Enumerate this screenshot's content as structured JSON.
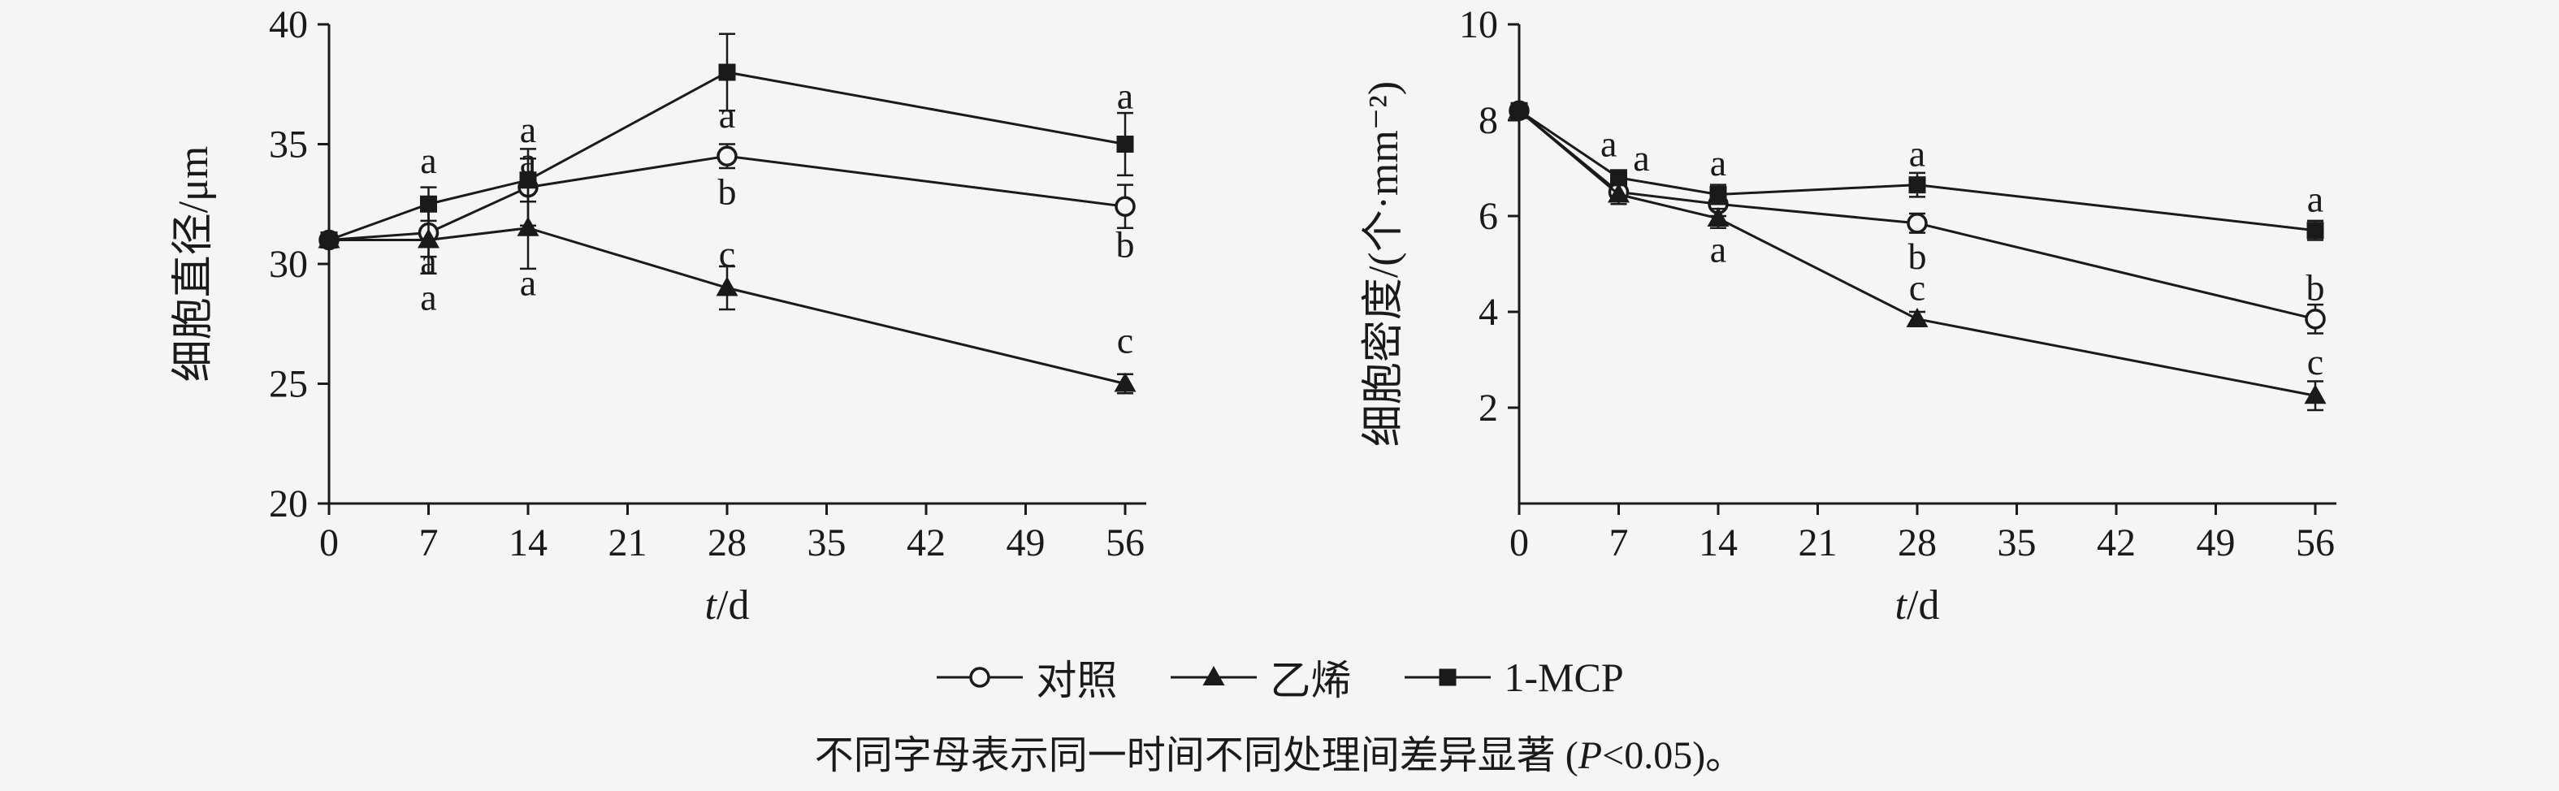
{
  "figure": {
    "background": "#f5f5f5",
    "ink": "#1a1a1a"
  },
  "legend": {
    "position": "bottom-center",
    "items": [
      {
        "label": "对照",
        "marker": "circle-open"
      },
      {
        "label": "乙烯",
        "marker": "triangle-filled"
      },
      {
        "label": "1-MCP",
        "marker": "square-filled"
      }
    ]
  },
  "caption": {
    "text": "不同字母表示同一时间不同处理间差异显著 (",
    "p": "P",
    "rest": "<0.05)。"
  },
  "chart_data": [
    {
      "type": "line",
      "title": "",
      "xlabel": "t/d",
      "ylabel": "细胞直径/μm",
      "xlim": [
        0,
        56
      ],
      "ylim": [
        20,
        40
      ],
      "xticks": [
        0,
        7,
        14,
        21,
        28,
        35,
        42,
        49,
        56
      ],
      "yticks": [
        20,
        25,
        30,
        35,
        40
      ],
      "grid": false,
      "x": [
        0,
        7,
        14,
        28,
        56
      ],
      "series": [
        {
          "name": "对照",
          "marker": "circle-open",
          "values": [
            31.0,
            31.3,
            33.2,
            34.5,
            32.4
          ],
          "errors": [
            0.3,
            1.0,
            1.6,
            0.5,
            0.9
          ]
        },
        {
          "name": "乙烯",
          "marker": "triangle-filled",
          "values": [
            31.0,
            31.0,
            31.5,
            29.0,
            25.0
          ],
          "errors": [
            0.3,
            1.4,
            1.7,
            0.9,
            0.4
          ]
        },
        {
          "name": "1-MCP",
          "marker": "square-filled",
          "values": [
            31.0,
            32.5,
            33.5,
            38.0,
            35.0
          ],
          "errors": [
            0.3,
            0.7,
            0.9,
            1.6,
            1.3
          ]
        }
      ],
      "annotations": [
        {
          "x": 7,
          "y": 34.3,
          "text": "a"
        },
        {
          "x": 7,
          "y": 30.1,
          "text": "a"
        },
        {
          "x": 7,
          "y": 28.6,
          "text": "a"
        },
        {
          "x": 14,
          "y": 35.6,
          "text": "a"
        },
        {
          "x": 14,
          "y": 34.3,
          "text": "a"
        },
        {
          "x": 14,
          "y": 29.2,
          "text": "a"
        },
        {
          "x": 28,
          "y": 36.2,
          "text": "a"
        },
        {
          "x": 28,
          "y": 33.0,
          "text": "b"
        },
        {
          "x": 28,
          "y": 30.4,
          "text": "c"
        },
        {
          "x": 56,
          "y": 37.0,
          "text": "a"
        },
        {
          "x": 56,
          "y": 30.8,
          "text": "b"
        },
        {
          "x": 56,
          "y": 26.8,
          "text": "c"
        }
      ]
    },
    {
      "type": "line",
      "title": "",
      "xlabel": "t/d",
      "ylabel": "细胞密度/(个·mm⁻²)",
      "xlim": [
        0,
        56
      ],
      "ylim": [
        0,
        10
      ],
      "xticks": [
        0,
        7,
        14,
        21,
        28,
        35,
        42,
        49,
        56
      ],
      "yticks": [
        2,
        4,
        6,
        8,
        10
      ],
      "grid": false,
      "x": [
        0,
        7,
        14,
        28,
        56
      ],
      "series": [
        {
          "name": "对照",
          "marker": "circle-open",
          "values": [
            8.2,
            6.5,
            6.25,
            5.85,
            3.85
          ],
          "errors": [
            0.12,
            0.2,
            0.25,
            0.2,
            0.3
          ]
        },
        {
          "name": "乙烯",
          "marker": "triangle-filled",
          "values": [
            8.2,
            6.45,
            5.95,
            3.85,
            2.25
          ],
          "errors": [
            0.12,
            0.2,
            0.2,
            0.15,
            0.3
          ]
        },
        {
          "name": "1-MCP",
          "marker": "square-filled",
          "values": [
            8.2,
            6.8,
            6.45,
            6.65,
            5.7
          ],
          "errors": [
            0.12,
            0.15,
            0.2,
            0.25,
            0.2
          ]
        }
      ],
      "annotations": [
        {
          "x": 6.3,
          "y": 7.5,
          "text": "a"
        },
        {
          "x": 8.6,
          "y": 7.2,
          "text": "a"
        },
        {
          "x": 14,
          "y": 7.1,
          "text": "a"
        },
        {
          "x": 14,
          "y": 5.3,
          "text": "a"
        },
        {
          "x": 28,
          "y": 7.3,
          "text": "a"
        },
        {
          "x": 28,
          "y": 5.15,
          "text": "b"
        },
        {
          "x": 28,
          "y": 4.5,
          "text": "c"
        },
        {
          "x": 56,
          "y": 6.35,
          "text": "a"
        },
        {
          "x": 56,
          "y": 4.5,
          "text": "b"
        },
        {
          "x": 56,
          "y": 2.95,
          "text": "c"
        }
      ]
    }
  ]
}
